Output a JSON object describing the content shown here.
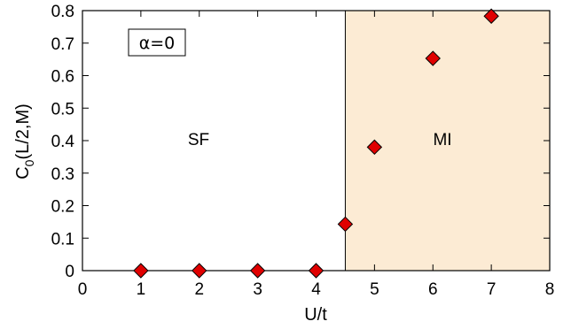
{
  "chart_data": {
    "type": "scatter",
    "title": "",
    "xlabel": "U/t",
    "ylabel_main": "C",
    "ylabel_sub": "0",
    "ylabel_rest": "(L/2,M)",
    "xlim": [
      0,
      8
    ],
    "ylim": [
      0,
      0.8
    ],
    "xticks": [
      0,
      1,
      2,
      3,
      4,
      5,
      6,
      7,
      8
    ],
    "yticks": [
      0,
      0.1,
      0.2,
      0.3,
      0.4,
      0.5,
      0.6,
      0.7,
      0.8
    ],
    "xtick_labels": [
      "0",
      "1",
      "2",
      "3",
      "4",
      "5",
      "6",
      "7",
      "8"
    ],
    "ytick_labels": [
      "0",
      "0.1",
      "0.2",
      "0.3",
      "0.4",
      "0.5",
      "0.6",
      "0.7",
      "0.8"
    ],
    "grid": false,
    "series": [
      {
        "marker": "diamond",
        "color": "#e00000",
        "x": [
          1,
          2,
          3,
          4,
          4.5,
          5,
          6,
          7
        ],
        "y": [
          0,
          0,
          0,
          0,
          0.143,
          0.38,
          0.653,
          0.783
        ]
      }
    ],
    "phase_boundary_x": 4.5,
    "mi_region_color": "#fcebd4",
    "regions": {
      "sf_label": "SF",
      "mi_label": "MI"
    },
    "annotation": "α=0"
  }
}
